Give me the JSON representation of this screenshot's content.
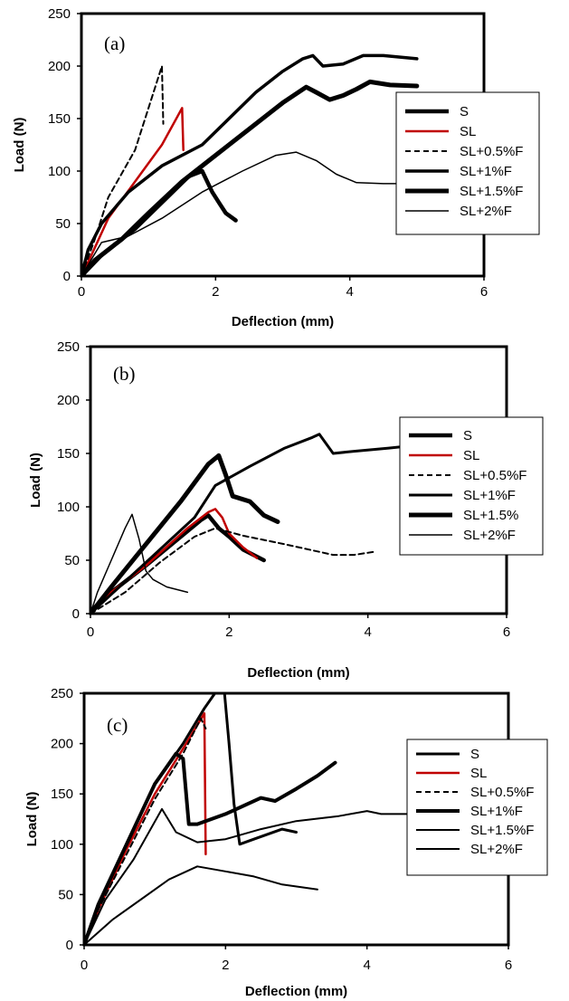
{
  "chart_data": [
    {
      "type": "line",
      "panel_label": "(a)",
      "xlabel": "Deflection (mm)",
      "ylabel": "Load (N)",
      "xlim": [
        0,
        6
      ],
      "ylim": [
        0,
        250
      ],
      "xticks": [
        0,
        2,
        4,
        6
      ],
      "yticks": [
        0,
        50,
        100,
        150,
        200,
        250
      ],
      "grid": false,
      "legend_position": "right",
      "series": [
        {
          "name": "S",
          "color": "#000000",
          "style": "solid",
          "weight": 4.5,
          "points": [
            [
              0,
              0
            ],
            [
              0.3,
              20
            ],
            [
              0.8,
              45
            ],
            [
              1.6,
              95
            ],
            [
              1.8,
              100
            ],
            [
              1.95,
              80
            ],
            [
              2.05,
              70
            ],
            [
              2.15,
              60
            ],
            [
              2.3,
              53
            ]
          ]
        },
        {
          "name": "SL",
          "color": "#c00000",
          "style": "solid",
          "weight": 2.5,
          "points": [
            [
              0,
              0
            ],
            [
              0.15,
              20
            ],
            [
              0.4,
              55
            ],
            [
              0.8,
              90
            ],
            [
              1.2,
              125
            ],
            [
              1.5,
              160
            ],
            [
              1.52,
              120
            ]
          ]
        },
        {
          "name": "SL+0.5%F",
          "color": "#000000",
          "style": "dashed",
          "weight": 2,
          "points": [
            [
              0,
              0
            ],
            [
              0.2,
              35
            ],
            [
              0.4,
              75
            ],
            [
              0.8,
              120
            ],
            [
              1.2,
              200
            ],
            [
              1.22,
              145
            ]
          ]
        },
        {
          "name": "SL+1%F",
          "color": "#000000",
          "style": "solid",
          "weight": 3.5,
          "points": [
            [
              0,
              0
            ],
            [
              0.1,
              25
            ],
            [
              0.3,
              50
            ],
            [
              0.7,
              80
            ],
            [
              1.2,
              105
            ],
            [
              1.8,
              125
            ],
            [
              2.2,
              150
            ],
            [
              2.6,
              175
            ],
            [
              3.0,
              195
            ],
            [
              3.3,
              207
            ],
            [
              3.45,
              210
            ],
            [
              3.6,
              200
            ],
            [
              3.9,
              202
            ],
            [
              4.2,
              210
            ],
            [
              4.5,
              210
            ],
            [
              5.0,
              207
            ]
          ]
        },
        {
          "name": "SL+1.5%F",
          "color": "#000000",
          "style": "solid",
          "weight": 5,
          "points": [
            [
              0,
              0
            ],
            [
              0.2,
              15
            ],
            [
              0.6,
              35
            ],
            [
              1.0,
              60
            ],
            [
              1.5,
              90
            ],
            [
              2.0,
              115
            ],
            [
              2.5,
              140
            ],
            [
              3.0,
              165
            ],
            [
              3.35,
              180
            ],
            [
              3.5,
              175
            ],
            [
              3.7,
              168
            ],
            [
              3.9,
              172
            ],
            [
              4.1,
              178
            ],
            [
              4.3,
              185
            ],
            [
              4.6,
              182
            ],
            [
              5.0,
              181
            ]
          ]
        },
        {
          "name": "SL+2%F",
          "color": "#000000",
          "style": "solid",
          "weight": 1.5,
          "points": [
            [
              0,
              0
            ],
            [
              0.3,
              32
            ],
            [
              0.7,
              38
            ],
            [
              1.2,
              55
            ],
            [
              1.8,
              80
            ],
            [
              2.4,
              100
            ],
            [
              2.9,
              115
            ],
            [
              3.2,
              118
            ],
            [
              3.5,
              110
            ],
            [
              3.8,
              97
            ],
            [
              4.1,
              89
            ],
            [
              4.5,
              88
            ],
            [
              5.0,
              88
            ]
          ]
        }
      ]
    },
    {
      "type": "line",
      "panel_label": "(b)",
      "xlabel": "Deflection (mm)",
      "ylabel": "Load (N)",
      "xlim": [
        0,
        6
      ],
      "ylim": [
        0,
        250
      ],
      "xticks": [
        0,
        2,
        4,
        6
      ],
      "yticks": [
        0,
        50,
        100,
        150,
        200,
        250
      ],
      "grid": false,
      "legend_position": "right",
      "series": [
        {
          "name": "S",
          "color": "#000000",
          "style": "solid",
          "weight": 4.5,
          "points": [
            [
              0,
              0
            ],
            [
              0.2,
              15
            ],
            [
              0.8,
              45
            ],
            [
              1.6,
              88
            ],
            [
              1.7,
              92
            ],
            [
              1.85,
              80
            ],
            [
              2.0,
              72
            ],
            [
              2.2,
              60
            ],
            [
              2.5,
              50
            ]
          ]
        },
        {
          "name": "SL",
          "color": "#c00000",
          "style": "solid",
          "weight": 2.5,
          "points": [
            [
              0,
              0
            ],
            [
              0.3,
              20
            ],
            [
              0.8,
              45
            ],
            [
              1.4,
              80
            ],
            [
              1.7,
              95
            ],
            [
              1.8,
              98
            ],
            [
              1.9,
              90
            ],
            [
              2.0,
              75
            ],
            [
              2.2,
              62
            ],
            [
              2.4,
              52
            ]
          ]
        },
        {
          "name": "SL+0.5%F",
          "color": "#000000",
          "style": "dashed",
          "weight": 2,
          "points": [
            [
              0,
              0
            ],
            [
              0.5,
              20
            ],
            [
              1.0,
              48
            ],
            [
              1.5,
              72
            ],
            [
              1.8,
              80
            ],
            [
              2.2,
              73
            ],
            [
              2.8,
              65
            ],
            [
              3.5,
              55
            ],
            [
              3.8,
              55
            ],
            [
              4.1,
              58
            ]
          ]
        },
        {
          "name": "SL+1%F",
          "color": "#000000",
          "style": "solid",
          "weight": 3,
          "points": [
            [
              0,
              0
            ],
            [
              0.5,
              30
            ],
            [
              1.0,
              60
            ],
            [
              1.5,
              90
            ],
            [
              1.8,
              120
            ],
            [
              2.3,
              138
            ],
            [
              2.8,
              155
            ],
            [
              3.2,
              165
            ],
            [
              3.3,
              168
            ],
            [
              3.5,
              150
            ],
            [
              3.8,
              152
            ],
            [
              4.3,
              155
            ],
            [
              4.6,
              157
            ]
          ]
        },
        {
          "name": "SL+1.5%",
          "color": "#000000",
          "style": "solid",
          "weight": 5,
          "points": [
            [
              0,
              0
            ],
            [
              0.3,
              25
            ],
            [
              0.8,
              65
            ],
            [
              1.3,
              105
            ],
            [
              1.7,
              140
            ],
            [
              1.85,
              148
            ],
            [
              1.95,
              130
            ],
            [
              2.05,
              110
            ],
            [
              2.3,
              105
            ],
            [
              2.5,
              92
            ],
            [
              2.7,
              86
            ]
          ]
        },
        {
          "name": "SL+2%F",
          "color": "#000000",
          "style": "solid",
          "weight": 1.5,
          "points": [
            [
              0,
              0
            ],
            [
              0.1,
              20
            ],
            [
              0.3,
              50
            ],
            [
              0.5,
              80
            ],
            [
              0.6,
              93
            ],
            [
              0.7,
              70
            ],
            [
              0.8,
              40
            ],
            [
              0.9,
              32
            ],
            [
              1.1,
              25
            ],
            [
              1.4,
              20
            ]
          ]
        }
      ]
    },
    {
      "type": "line",
      "panel_label": "(c)",
      "xlabel": "Deflection (mm)",
      "ylabel": "Load (N)",
      "xlim": [
        0,
        6
      ],
      "ylim": [
        0,
        250
      ],
      "xticks": [
        0,
        2,
        4,
        6
      ],
      "yticks": [
        0,
        50,
        100,
        150,
        200,
        250
      ],
      "grid": false,
      "legend_position": "right",
      "series": [
        {
          "name": "S",
          "color": "#000000",
          "style": "solid",
          "weight": 3,
          "points": [
            [
              0,
              0
            ],
            [
              0.2,
              40
            ],
            [
              0.6,
              100
            ],
            [
              1.0,
              160
            ],
            [
              1.4,
              200
            ],
            [
              1.7,
              235
            ],
            [
              1.9,
              255
            ],
            [
              1.97,
              262
            ],
            [
              2.05,
              200
            ],
            [
              2.12,
              140
            ],
            [
              2.2,
              100
            ],
            [
              2.4,
              105
            ],
            [
              2.8,
              115
            ],
            [
              3.0,
              112
            ]
          ]
        },
        {
          "name": "SL",
          "color": "#c00000",
          "style": "solid",
          "weight": 2.5,
          "points": [
            [
              0,
              0
            ],
            [
              0.2,
              35
            ],
            [
              0.6,
              95
            ],
            [
              1.0,
              150
            ],
            [
              1.4,
              195
            ],
            [
              1.7,
              230
            ],
            [
              1.72,
              90
            ]
          ]
        },
        {
          "name": "SL+0.5%F",
          "color": "#000000",
          "style": "dashed",
          "weight": 2,
          "points": [
            [
              0,
              0
            ],
            [
              0.2,
              35
            ],
            [
              0.6,
              90
            ],
            [
              1.0,
              145
            ],
            [
              1.4,
              190
            ],
            [
              1.65,
              225
            ],
            [
              1.72,
              215
            ]
          ]
        },
        {
          "name": "SL+1%F",
          "color": "#000000",
          "style": "solid",
          "weight": 4,
          "points": [
            [
              0,
              0
            ],
            [
              0.2,
              40
            ],
            [
              0.6,
              100
            ],
            [
              1.0,
              160
            ],
            [
              1.3,
              190
            ],
            [
              1.4,
              185
            ],
            [
              1.48,
              120
            ],
            [
              1.6,
              120
            ],
            [
              2.0,
              130
            ],
            [
              2.5,
              146
            ],
            [
              2.7,
              143
            ],
            [
              3.0,
              155
            ],
            [
              3.3,
              168
            ],
            [
              3.55,
              181
            ]
          ]
        },
        {
          "name": "SL+1.5%F",
          "color": "#000000",
          "style": "solid",
          "weight": 2,
          "points": [
            [
              0,
              0
            ],
            [
              0.3,
              45
            ],
            [
              0.7,
              85
            ],
            [
              1.1,
              135
            ],
            [
              1.3,
              112
            ],
            [
              1.6,
              102
            ],
            [
              2.0,
              105
            ],
            [
              2.5,
              115
            ],
            [
              3.0,
              123
            ],
            [
              3.6,
              128
            ],
            [
              4.0,
              133
            ],
            [
              4.2,
              130
            ],
            [
              4.6,
              130
            ],
            [
              4.8,
              130
            ]
          ]
        },
        {
          "name": "SL+2%F",
          "color": "#000000",
          "style": "solid",
          "weight": 2,
          "points": [
            [
              0,
              0
            ],
            [
              0.4,
              25
            ],
            [
              0.8,
              45
            ],
            [
              1.2,
              65
            ],
            [
              1.6,
              78
            ],
            [
              2.0,
              73
            ],
            [
              2.4,
              68
            ],
            [
              2.8,
              60
            ],
            [
              3.3,
              55
            ]
          ]
        }
      ]
    }
  ]
}
